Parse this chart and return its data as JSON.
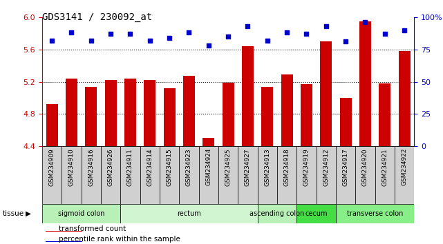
{
  "title": "GDS3141 / 230092_at",
  "samples": [
    "GSM234909",
    "GSM234910",
    "GSM234916",
    "GSM234926",
    "GSM234911",
    "GSM234914",
    "GSM234915",
    "GSM234923",
    "GSM234924",
    "GSM234925",
    "GSM234927",
    "GSM234913",
    "GSM234918",
    "GSM234919",
    "GSM234912",
    "GSM234917",
    "GSM234920",
    "GSM234921",
    "GSM234922"
  ],
  "bar_values": [
    4.92,
    5.24,
    5.14,
    5.22,
    5.24,
    5.22,
    5.12,
    5.27,
    4.51,
    5.19,
    5.64,
    5.14,
    5.29,
    5.17,
    5.7,
    5.0,
    5.95,
    5.18,
    5.58
  ],
  "dot_values": [
    82,
    88,
    82,
    87,
    87,
    82,
    84,
    88,
    78,
    85,
    93,
    82,
    88,
    87,
    93,
    81,
    96,
    87,
    90
  ],
  "ylim_left": [
    4.4,
    6.0
  ],
  "ylim_right": [
    0,
    100
  ],
  "yticks_left": [
    4.4,
    4.8,
    5.2,
    5.6,
    6.0
  ],
  "yticks_right": [
    0,
    25,
    50,
    75,
    100
  ],
  "hlines": [
    4.8,
    5.2,
    5.6
  ],
  "bar_color": "#cc0000",
  "dot_color": "#0000cc",
  "tissue_groups": [
    {
      "label": "sigmoid colon",
      "start": 0,
      "end": 4,
      "color": "#b8f0b8"
    },
    {
      "label": "rectum",
      "start": 4,
      "end": 11,
      "color": "#d0f5d0"
    },
    {
      "label": "ascending colon",
      "start": 11,
      "end": 13,
      "color": "#b8f0b8"
    },
    {
      "label": "cecum",
      "start": 13,
      "end": 15,
      "color": "#44dd44"
    },
    {
      "label": "transverse colon",
      "start": 15,
      "end": 19,
      "color": "#88ee88"
    }
  ],
  "legend_items": [
    {
      "label": "transformed count",
      "color": "#cc0000"
    },
    {
      "label": "percentile rank within the sample",
      "color": "#0000cc"
    }
  ],
  "axis_label_color_left": "#cc0000",
  "axis_label_color_right": "#0000cc",
  "bg_color": "#ffffff",
  "tick_label_bg": "#d0d0d0",
  "bar_width": 0.6
}
